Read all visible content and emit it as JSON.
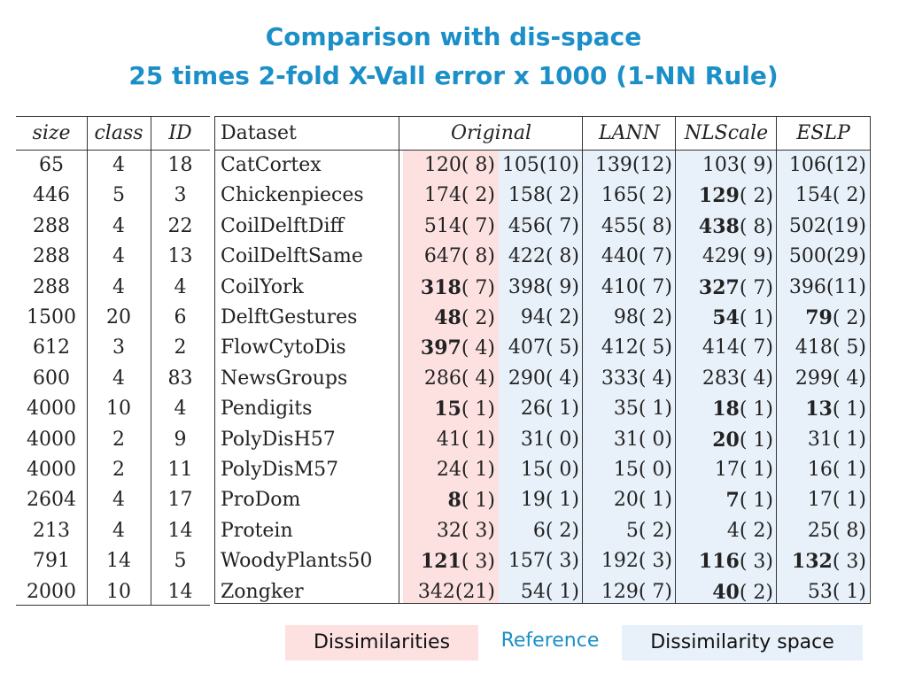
{
  "title": {
    "line1": "Comparison with dis-space",
    "line2": "25 times 2-fold X-Vall error x 1000 (1-NN Rule)"
  },
  "meta_table": {
    "headers": [
      "size",
      "class",
      "ID"
    ],
    "rows": [
      [
        "65",
        "4",
        "18"
      ],
      [
        "446",
        "5",
        "3"
      ],
      [
        "288",
        "4",
        "22"
      ],
      [
        "288",
        "4",
        "13"
      ],
      [
        "288",
        "4",
        "4"
      ],
      [
        "1500",
        "20",
        "6"
      ],
      [
        "612",
        "3",
        "2"
      ],
      [
        "600",
        "4",
        "83"
      ],
      [
        "4000",
        "10",
        "4"
      ],
      [
        "4000",
        "2",
        "9"
      ],
      [
        "4000",
        "2",
        "11"
      ],
      [
        "2604",
        "4",
        "17"
      ],
      [
        "213",
        "4",
        "14"
      ],
      [
        "791",
        "14",
        "5"
      ],
      [
        "2000",
        "10",
        "14"
      ]
    ]
  },
  "main_table": {
    "dataset_header": "Dataset",
    "col_headers": [
      "Original",
      "LANN",
      "NLScale",
      "ESLP"
    ],
    "rows": [
      {
        "name": "CatCortex",
        "cells": [
          {
            "v": "120",
            "s": "( 8)",
            "b": false
          },
          {
            "v": "105",
            "s": "(10)",
            "b": false
          },
          {
            "v": "139",
            "s": "(12)",
            "b": false
          },
          {
            "v": "103",
            "s": "( 9)",
            "b": false
          },
          {
            "v": "106",
            "s": "(12)",
            "b": false
          }
        ]
      },
      {
        "name": "Chickenpieces",
        "cells": [
          {
            "v": "174",
            "s": "( 2)",
            "b": false
          },
          {
            "v": "158",
            "s": "( 2)",
            "b": false
          },
          {
            "v": "165",
            "s": "( 2)",
            "b": false
          },
          {
            "v": "129",
            "s": "( 2)",
            "b": true
          },
          {
            "v": "154",
            "s": "( 2)",
            "b": false
          }
        ]
      },
      {
        "name": "CoilDelftDiff",
        "cells": [
          {
            "v": "514",
            "s": "( 7)",
            "b": false
          },
          {
            "v": "456",
            "s": "( 7)",
            "b": false
          },
          {
            "v": "455",
            "s": "( 8)",
            "b": false
          },
          {
            "v": "438",
            "s": "( 8)",
            "b": true
          },
          {
            "v": "502",
            "s": "(19)",
            "b": false
          }
        ]
      },
      {
        "name": "CoilDelftSame",
        "cells": [
          {
            "v": "647",
            "s": "( 8)",
            "b": false
          },
          {
            "v": "422",
            "s": "( 8)",
            "b": false
          },
          {
            "v": "440",
            "s": "( 7)",
            "b": false
          },
          {
            "v": "429",
            "s": "( 9)",
            "b": false
          },
          {
            "v": "500",
            "s": "(29)",
            "b": false
          }
        ]
      },
      {
        "name": "CoilYork",
        "cells": [
          {
            "v": "318",
            "s": "( 7)",
            "b": true
          },
          {
            "v": "398",
            "s": "( 9)",
            "b": false
          },
          {
            "v": "410",
            "s": "( 7)",
            "b": false
          },
          {
            "v": "327",
            "s": "( 7)",
            "b": true
          },
          {
            "v": "396",
            "s": "(11)",
            "b": false
          }
        ]
      },
      {
        "name": "DelftGestures",
        "cells": [
          {
            "v": "48",
            "s": "( 2)",
            "b": true
          },
          {
            "v": "94",
            "s": "( 2)",
            "b": false
          },
          {
            "v": "98",
            "s": "( 2)",
            "b": false
          },
          {
            "v": "54",
            "s": "( 1)",
            "b": true
          },
          {
            "v": "79",
            "s": "( 2)",
            "b": true
          }
        ]
      },
      {
        "name": "FlowCytoDis",
        "cells": [
          {
            "v": "397",
            "s": "( 4)",
            "b": true
          },
          {
            "v": "407",
            "s": "( 5)",
            "b": false
          },
          {
            "v": "412",
            "s": "( 5)",
            "b": false
          },
          {
            "v": "414",
            "s": "( 7)",
            "b": false
          },
          {
            "v": "418",
            "s": "( 5)",
            "b": false
          }
        ]
      },
      {
        "name": "NewsGroups",
        "cells": [
          {
            "v": "286",
            "s": "( 4)",
            "b": false
          },
          {
            "v": "290",
            "s": "( 4)",
            "b": false
          },
          {
            "v": "333",
            "s": "( 4)",
            "b": false
          },
          {
            "v": "283",
            "s": "( 4)",
            "b": false
          },
          {
            "v": "299",
            "s": "( 4)",
            "b": false
          }
        ]
      },
      {
        "name": "Pendigits",
        "cells": [
          {
            "v": "15",
            "s": "( 1)",
            "b": true
          },
          {
            "v": "26",
            "s": "( 1)",
            "b": false
          },
          {
            "v": "35",
            "s": "( 1)",
            "b": false
          },
          {
            "v": "18",
            "s": "( 1)",
            "b": true
          },
          {
            "v": "13",
            "s": "( 1)",
            "b": true
          }
        ]
      },
      {
        "name": "PolyDisH57",
        "cells": [
          {
            "v": "41",
            "s": "( 1)",
            "b": false
          },
          {
            "v": "31",
            "s": "( 0)",
            "b": false
          },
          {
            "v": "31",
            "s": "( 0)",
            "b": false
          },
          {
            "v": "20",
            "s": "( 1)",
            "b": true
          },
          {
            "v": "31",
            "s": "( 1)",
            "b": false
          }
        ]
      },
      {
        "name": "PolyDisM57",
        "cells": [
          {
            "v": "24",
            "s": "( 1)",
            "b": false
          },
          {
            "v": "15",
            "s": "( 0)",
            "b": false
          },
          {
            "v": "15",
            "s": "( 0)",
            "b": false
          },
          {
            "v": "17",
            "s": "( 1)",
            "b": false
          },
          {
            "v": "16",
            "s": "( 1)",
            "b": false
          }
        ]
      },
      {
        "name": "ProDom",
        "cells": [
          {
            "v": "8",
            "s": "( 1)",
            "b": true
          },
          {
            "v": "19",
            "s": "( 1)",
            "b": false
          },
          {
            "v": "20",
            "s": "( 1)",
            "b": false
          },
          {
            "v": "7",
            "s": "( 1)",
            "b": true
          },
          {
            "v": "17",
            "s": "( 1)",
            "b": false
          }
        ]
      },
      {
        "name": "Protein",
        "cells": [
          {
            "v": "32",
            "s": "( 3)",
            "b": false
          },
          {
            "v": "6",
            "s": "( 2)",
            "b": false
          },
          {
            "v": "5",
            "s": "( 2)",
            "b": false
          },
          {
            "v": "4",
            "s": "( 2)",
            "b": false
          },
          {
            "v": "25",
            "s": "( 8)",
            "b": false
          }
        ]
      },
      {
        "name": "WoodyPlants50",
        "cells": [
          {
            "v": "121",
            "s": "( 3)",
            "b": true
          },
          {
            "v": "157",
            "s": "( 3)",
            "b": false
          },
          {
            "v": "192",
            "s": "( 3)",
            "b": false
          },
          {
            "v": "116",
            "s": "( 3)",
            "b": true
          },
          {
            "v": "132",
            "s": "( 3)",
            "b": true
          }
        ]
      },
      {
        "name": "Zongker",
        "cells": [
          {
            "v": "342",
            "s": "(21)",
            "b": false
          },
          {
            "v": "54",
            "s": "( 1)",
            "b": false
          },
          {
            "v": "129",
            "s": "( 7)",
            "b": false
          },
          {
            "v": "40",
            "s": "( 2)",
            "b": true
          },
          {
            "v": "53",
            "s": "( 1)",
            "b": false
          }
        ]
      }
    ]
  },
  "legend": {
    "dissimilarities": "Dissimilarities",
    "reference": "Reference",
    "dissimilarity_space": "Dissimilarity space"
  },
  "colors": {
    "title": "#1b8fc8",
    "pink_highlight": "#fde1e1",
    "blue_highlight": "#e8f1fa"
  }
}
